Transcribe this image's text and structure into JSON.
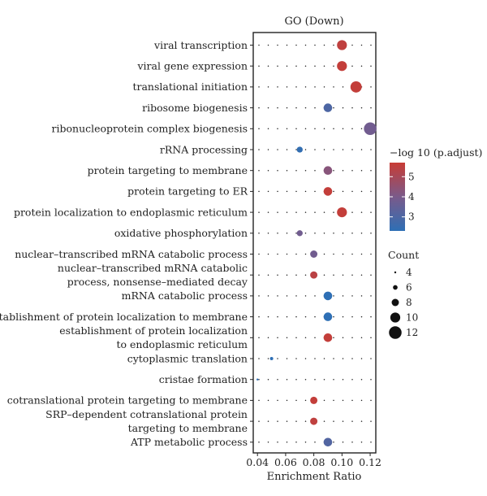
{
  "chart_data": {
    "type": "scatter",
    "title": "GO (Down)",
    "xlabel": "Enrichment Ratio",
    "xlim": [
      0.037,
      0.124
    ],
    "xticks": [
      "0.04",
      "0.06",
      "0.08",
      "0.10",
      "0.12"
    ],
    "xtick_values": [
      0.04,
      0.06,
      0.08,
      0.1,
      0.12
    ],
    "categories": [
      [
        "viral transcription"
      ],
      [
        "viral gene expression"
      ],
      [
        "translational initiation"
      ],
      [
        "ribosome biogenesis"
      ],
      [
        "ribonucleoprotein complex biogenesis"
      ],
      [
        "rRNA processing"
      ],
      [
        "protein targeting to membrane"
      ],
      [
        "protein targeting to ER"
      ],
      [
        "protein localization to endoplasmic reticulum"
      ],
      [
        "oxidative phosphorylation"
      ],
      [
        "nuclear–transcribed mRNA catabolic process"
      ],
      [
        "nuclear–transcribed mRNA catabolic",
        "process, nonsense–mediated decay"
      ],
      [
        "mRNA catabolic process"
      ],
      [
        "establishment of protein localization to membrane"
      ],
      [
        "establishment of protein localization",
        "to endoplasmic reticulum"
      ],
      [
        "cytoplasmic translation"
      ],
      [
        "cristae formation"
      ],
      [
        "cotranslational protein targeting to membrane"
      ],
      [
        "SRP–dependent cotranslational protein",
        "targeting to membrane"
      ],
      [
        "ATP metabolic process"
      ]
    ],
    "points": [
      {
        "x": 0.1,
        "count": 10,
        "neglogp": 5.5
      },
      {
        "x": 0.1,
        "count": 10,
        "neglogp": 5.6
      },
      {
        "x": 0.11,
        "count": 11,
        "neglogp": 5.6
      },
      {
        "x": 0.09,
        "count": 9,
        "neglogp": 3.0
      },
      {
        "x": 0.12,
        "count": 12,
        "neglogp": 3.8
      },
      {
        "x": 0.07,
        "count": 7,
        "neglogp": 2.4
      },
      {
        "x": 0.09,
        "count": 9,
        "neglogp": 4.3
      },
      {
        "x": 0.09,
        "count": 9,
        "neglogp": 5.6
      },
      {
        "x": 0.1,
        "count": 10,
        "neglogp": 5.6
      },
      {
        "x": 0.07,
        "count": 7,
        "neglogp": 3.8
      },
      {
        "x": 0.08,
        "count": 8,
        "neglogp": 3.8
      },
      {
        "x": 0.08,
        "count": 8,
        "neglogp": 5.4
      },
      {
        "x": 0.09,
        "count": 9,
        "neglogp": 2.3
      },
      {
        "x": 0.09,
        "count": 9,
        "neglogp": 2.3
      },
      {
        "x": 0.09,
        "count": 9,
        "neglogp": 5.6
      },
      {
        "x": 0.05,
        "count": 5,
        "neglogp": 2.3
      },
      {
        "x": 0.04,
        "count": 4,
        "neglogp": 2.3
      },
      {
        "x": 0.08,
        "count": 8,
        "neglogp": 5.6
      },
      {
        "x": 0.08,
        "count": 8,
        "neglogp": 5.5
      },
      {
        "x": 0.09,
        "count": 9,
        "neglogp": 3.1
      }
    ],
    "color_legend": {
      "title": "−log 10 (p.adjust)",
      "ticks": [
        "5",
        "4",
        "3"
      ],
      "tick_values": [
        5,
        4,
        3
      ],
      "range": [
        2.3,
        5.7
      ],
      "low_color": "#2e6fb5",
      "high_color": "#c83c35"
    },
    "size_legend": {
      "title": "Count",
      "labels": [
        "4",
        "6",
        "8",
        "10",
        "12"
      ],
      "values": [
        4,
        6,
        8,
        10,
        12
      ]
    },
    "grid": "dotted"
  }
}
